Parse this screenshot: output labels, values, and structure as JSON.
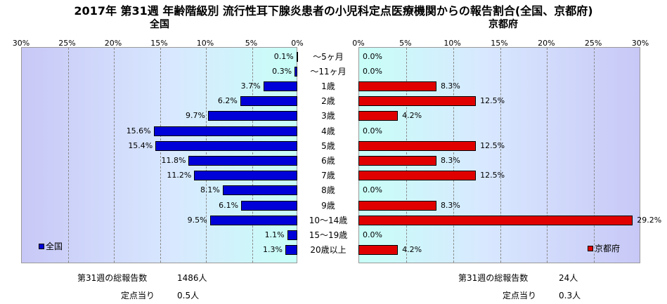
{
  "title": "2017年 第31週 年齢階級別 流行性耳下腺炎患者の小児科定点医療機関からの報告割合(全国、京都府)",
  "chart_data": {
    "type": "bar",
    "categories": [
      "～5ヶ月",
      "～11ヶ月",
      "1歳",
      "2歳",
      "3歳",
      "4歳",
      "5歳",
      "6歳",
      "7歳",
      "8歳",
      "9歳",
      "10～14歳",
      "15～19歳",
      "20歳以上"
    ],
    "panels": [
      {
        "subtitle": "全国",
        "series": [
          {
            "name": "全国",
            "values": [
              0.1,
              0.3,
              3.7,
              6.2,
              9.7,
              15.6,
              15.4,
              11.8,
              11.2,
              8.1,
              6.1,
              9.5,
              1.1,
              1.3
            ]
          }
        ],
        "labels": [
          "0.1%",
          "0.3%",
          "3.7%",
          "6.2%",
          "9.7%",
          "15.6%",
          "15.4%",
          "11.8%",
          "11.2%",
          "8.1%",
          "6.1%",
          "9.5%",
          "1.1%",
          "1.3%"
        ],
        "xticks": [
          "30%",
          "25%",
          "20%",
          "15%",
          "10%",
          "5%",
          "0%"
        ],
        "xlim": [
          0,
          30
        ],
        "direction": "reversed",
        "color": "#0000d8",
        "legend": "bottom-left"
      },
      {
        "subtitle": "京都府",
        "series": [
          {
            "name": "京都府",
            "values": [
              0.0,
              0.0,
              8.3,
              12.5,
              4.2,
              0.0,
              12.5,
              8.3,
              12.5,
              0.0,
              8.3,
              29.2,
              0.0,
              4.2
            ]
          }
        ],
        "labels": [
          "0.0%",
          "0.0%",
          "8.3%",
          "12.5%",
          "4.2%",
          "0.0%",
          "12.5%",
          "8.3%",
          "12.5%",
          "0.0%",
          "8.3%",
          "29.2%",
          "0.0%",
          "4.2%"
        ],
        "xticks": [
          "0%",
          "5%",
          "10%",
          "15%",
          "20%",
          "25%",
          "30%"
        ],
        "xlim": [
          0,
          30
        ],
        "direction": "normal",
        "color": "#e00000",
        "legend": "bottom-right"
      }
    ],
    "grid": true
  },
  "footer": {
    "left": {
      "total_label": "第31週の総報告数",
      "total_value": "1486人",
      "per_label": "定点当り",
      "per_value": "0.5人"
    },
    "right": {
      "total_label": "第31週の総報告数",
      "total_value": "24人",
      "per_label": "定点当り",
      "per_value": "0.3人"
    }
  }
}
